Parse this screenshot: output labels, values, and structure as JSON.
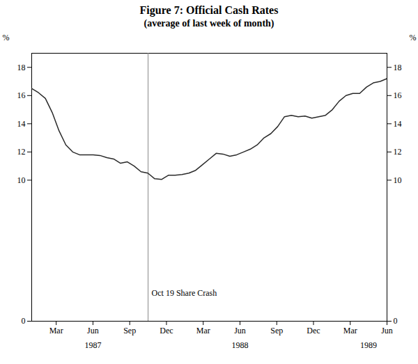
{
  "chart_data": {
    "type": "line",
    "title": "Figure 7:  Official Cash Rates",
    "subtitle": "(average of last week of month)",
    "ylabel": "%",
    "x": [
      0,
      0.557692,
      1.115385,
      1.673077,
      2.230769,
      2.788462,
      3.346154,
      3.903846,
      4.461538,
      5.019231,
      5.576923,
      6.134615,
      6.692308,
      7.25,
      7.807692,
      8.365385,
      8.923077,
      9.480769,
      10.038462,
      10.596154,
      11.153846,
      11.711538,
      12.269231,
      12.826923,
      13.384615,
      13.942308,
      14.5,
      15.057692,
      15.615385,
      16.173077,
      16.730769,
      17.288462,
      17.846154,
      18.403846,
      18.961538,
      19.519231,
      20.076923,
      20.634615,
      21.192308,
      21.75,
      22.307692,
      22.865385,
      23.423077,
      23.980769,
      24.538462,
      25.096154,
      25.653846,
      26.211538,
      26.769231,
      27.326923,
      27.884615,
      28.442308,
      29
    ],
    "values": [
      16.5,
      16.2,
      15.8,
      14.8,
      13.5,
      12.5,
      12.0,
      11.8,
      11.8,
      11.8,
      11.75,
      11.6,
      11.5,
      11.2,
      11.3,
      11.0,
      10.6,
      10.5,
      10.1,
      10.05,
      10.35,
      10.35,
      10.4,
      10.5,
      10.7,
      11.1,
      11.5,
      11.9,
      11.85,
      11.7,
      11.8,
      12.0,
      12.2,
      12.5,
      13.0,
      13.3,
      13.8,
      14.5,
      14.6,
      14.5,
      14.55,
      14.4,
      14.5,
      14.6,
      15.0,
      15.6,
      16.0,
      16.15,
      16.15,
      16.6,
      16.9,
      17.0,
      17.2
    ],
    "color": "#2a2a2a",
    "xlim": [
      0,
      29
    ],
    "xticks": [
      {
        "value": 2,
        "label": "Mar"
      },
      {
        "value": 5,
        "label": "Jun"
      },
      {
        "value": 8,
        "label": "Sep"
      },
      {
        "value": 11,
        "label": "Dec"
      },
      {
        "value": 14,
        "label": "Mar"
      },
      {
        "value": 17,
        "label": "Jun"
      },
      {
        "value": 20,
        "label": "Sep"
      },
      {
        "value": 23,
        "label": "Dec"
      },
      {
        "value": 26,
        "label": "Mar"
      },
      {
        "value": 29,
        "label": "Jun"
      }
    ],
    "ylim": [
      0,
      19
    ],
    "yticks": [
      0,
      10,
      12,
      14,
      16,
      18
    ],
    "vline": {
      "x": 9.5,
      "color": "#888888"
    },
    "annotations": [
      {
        "text": "Oct 19 Share Crash",
        "x": 9.5,
        "y": 2.0
      }
    ],
    "x_group_labels": [
      {
        "text": "1987",
        "x": 5
      },
      {
        "text": "1988",
        "x": 17
      },
      {
        "text": "1989",
        "x": 27.5
      }
    ],
    "grid": false
  }
}
